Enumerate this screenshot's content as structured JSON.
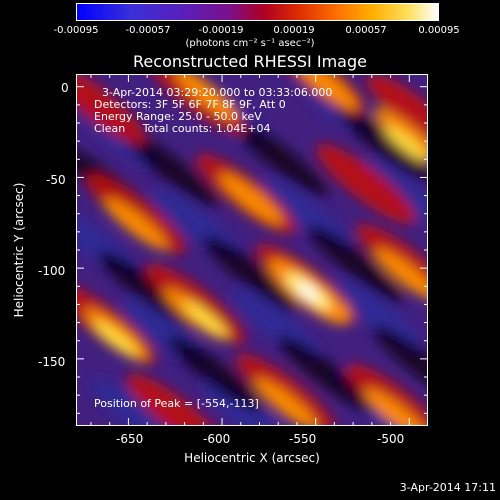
{
  "colorbar": {
    "ticks": [
      "-0.00095",
      "-0.00057",
      "-0.00019",
      "0.00019",
      "0.00057",
      "0.00095"
    ],
    "units": "(photons cm⁻² s⁻¹ asec⁻²)",
    "min": -0.00095,
    "max": 0.00095
  },
  "title": "Reconstructed RHESSI Image",
  "annotations": {
    "time_range": "3-Apr-2014 03:29:20.000 to 03:33:06.000",
    "detectors": "Detectors: 3F 5F 6F 7F 8F 9F, Att 0",
    "energy": "Energy Range: 25.0 - 50.0 keV",
    "clean": "Clean     Total counts: 1.04E+04",
    "peak": "Position of Peak = [-554,-113]"
  },
  "xaxis": {
    "label": "Heliocentric X (arcsec)",
    "ticks": [
      "-650",
      "-600",
      "-550",
      "-500"
    ]
  },
  "yaxis": {
    "label": "Heliocentric Y (arcsec)",
    "ticks": [
      "0",
      "-50",
      "-100",
      "-150"
    ]
  },
  "datestamp": "3-Apr-2014 17:11",
  "chart_data": {
    "type": "heatmap",
    "title": "Reconstructed RHESSI Image",
    "xlabel": "Heliocentric X (arcsec)",
    "ylabel": "Heliocentric Y (arcsec)",
    "xlim": [
      -678,
      -490
    ],
    "ylim": [
      -187,
      7
    ],
    "x_ticks": [
      -650,
      -600,
      -550,
      -500
    ],
    "y_ticks": [
      0,
      -50,
      -100,
      -150
    ],
    "peak": [
      -554,
      -113
    ],
    "colormap": "black-purple-red-orange-yellow-white (IDL color table 3 style)",
    "value_range": [
      -0.00095,
      0.00095
    ]
  }
}
